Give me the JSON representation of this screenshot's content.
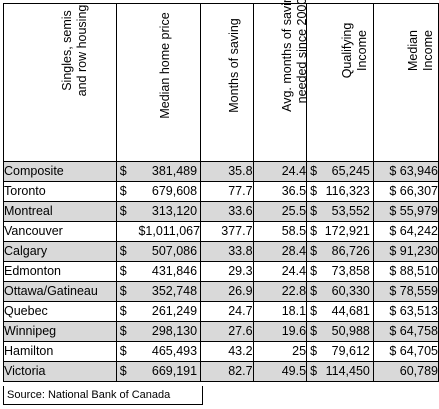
{
  "headers": {
    "city": "Singles, semis and row housing",
    "city_lines": [
      "Singles, semis",
      "and row housing"
    ],
    "price_lines": [
      "Median home price"
    ],
    "saving_lines": [
      "Months of saving"
    ],
    "avg_lines": [
      "Avg. months of saving",
      "needed since 2000"
    ],
    "qual_lines": [
      "Qualifying",
      "Income"
    ],
    "median_lines": [
      "Median",
      "Income"
    ]
  },
  "rows": [
    {
      "city": "Composite",
      "price": "381,489",
      "saving": "35.8",
      "avg": "24.4",
      "qual": "65,245",
      "median": "$ 63,946",
      "shaded": true
    },
    {
      "city": "Toronto",
      "price": "679,608",
      "saving": "77.7",
      "avg": "36.5",
      "qual": "116,323",
      "median": "$ 66,307",
      "shaded": false
    },
    {
      "city": "Montreal",
      "price": "313,120",
      "saving": "33.6",
      "avg": "25.5",
      "qual": "53,552",
      "median": "$ 55,979",
      "shaded": true
    },
    {
      "city": "Vancouver",
      "price": "$1,011,067",
      "saving": "377.7",
      "avg": "58.5",
      "qual": "172,921",
      "median": "$ 64,242",
      "shaded": false,
      "price_full": true
    },
    {
      "city": "Calgary",
      "price": "507,086",
      "saving": "33.8",
      "avg": "28.4",
      "qual": "86,726",
      "median": "$ 91,230",
      "shaded": true
    },
    {
      "city": "Edmonton",
      "price": "431,846",
      "saving": "29.3",
      "avg": "24.4",
      "qual": "73,858",
      "median": "$ 88,510",
      "shaded": false
    },
    {
      "city": "Ottawa/Gatineau",
      "price": "352,748",
      "saving": "26.9",
      "avg": "22.8",
      "qual": "60,330",
      "median": "$ 78,559",
      "shaded": true
    },
    {
      "city": "Quebec",
      "price": "261,249",
      "saving": "24.7",
      "avg": "18.1",
      "qual": "44,681",
      "median": "$ 63,513",
      "shaded": false
    },
    {
      "city": "Winnipeg",
      "price": "298,130",
      "saving": "27.6",
      "avg": "19.6",
      "qual": "50,988",
      "median": "$ 64,758",
      "shaded": true
    },
    {
      "city": "Hamilton",
      "price": "465,493",
      "saving": "43.2",
      "avg": "25",
      "qual": "79,612",
      "median": "$ 64,705",
      "shaded": false
    },
    {
      "city": "Victoria",
      "price": "669,191",
      "saving": "82.7",
      "avg": "49.5",
      "qual": "114,450",
      "median": "60,789",
      "shaded": true
    }
  ],
  "dollar_sign": "$",
  "source": "Source:  National Bank of Canada"
}
